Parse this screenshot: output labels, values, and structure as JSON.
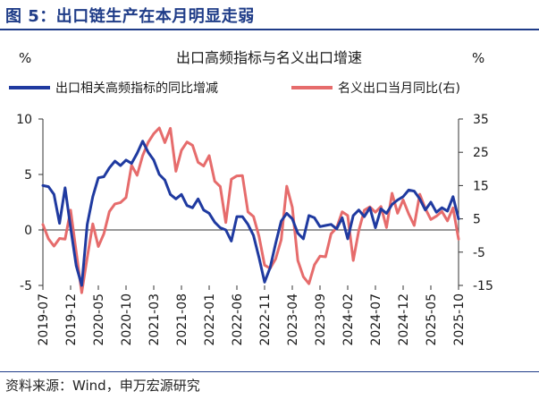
{
  "figure_title": "图 5：出口链生产在本月明显走弱",
  "source": "资料来源：Wind，申万宏源研究",
  "colors": {
    "brand": "#1f3c88",
    "series_left": "#1f3aa0",
    "series_right": "#e66c6c",
    "axis": "#333333"
  },
  "chart_data": {
    "type": "line",
    "title": "出口高频指标与名义出口增速",
    "left_unit": "%",
    "right_unit": "%",
    "legend_position": "top",
    "grid": false,
    "y_left": {
      "lim": [
        -5,
        10
      ],
      "ticks": [
        -5,
        0,
        5,
        10
      ]
    },
    "y_right": {
      "lim": [
        -15,
        35
      ],
      "ticks": [
        -15,
        -5,
        5,
        15,
        25,
        35
      ]
    },
    "x_ticks": [
      "2019-07",
      "2019-12",
      "2020-05",
      "2020-10",
      "2021-03",
      "2021-08",
      "2022-01",
      "2022-06",
      "2022-11",
      "2023-04",
      "2023-09",
      "2024-02",
      "2024-07",
      "2024-12",
      "2025-05",
      "2025-10"
    ],
    "series": [
      {
        "name": "出口相关高频指标的同比增减",
        "axis": "left",
        "color": "#1f3aa0",
        "points": [
          [
            "2019-07",
            4.0
          ],
          [
            "2019-08",
            3.9
          ],
          [
            "2019-09",
            3.2
          ],
          [
            "2019-10",
            0.6
          ],
          [
            "2019-11",
            3.8
          ],
          [
            "2019-12",
            0.2
          ],
          [
            "2020-01",
            -3.2
          ],
          [
            "2020-02",
            -5.0
          ],
          [
            "2020-03",
            0.5
          ],
          [
            "2020-04",
            3.0
          ],
          [
            "2020-05",
            4.7
          ],
          [
            "2020-06",
            4.8
          ],
          [
            "2020-07",
            5.6
          ],
          [
            "2020-08",
            6.2
          ],
          [
            "2020-09",
            5.8
          ],
          [
            "2020-10",
            6.3
          ],
          [
            "2020-11",
            6.0
          ],
          [
            "2020-12",
            6.9
          ],
          [
            "2021-01",
            8.0
          ],
          [
            "2021-02",
            7.0
          ],
          [
            "2021-03",
            6.3
          ],
          [
            "2021-04",
            5.0
          ],
          [
            "2021-05",
            4.5
          ],
          [
            "2021-06",
            3.2
          ],
          [
            "2021-07",
            2.8
          ],
          [
            "2021-08",
            3.2
          ],
          [
            "2021-09",
            2.2
          ],
          [
            "2021-10",
            2.0
          ],
          [
            "2021-11",
            2.8
          ],
          [
            "2021-12",
            1.8
          ],
          [
            "2022-01",
            1.5
          ],
          [
            "2022-02",
            0.7
          ],
          [
            "2022-03",
            0.2
          ],
          [
            "2022-04",
            0.0
          ],
          [
            "2022-05",
            -1.0
          ],
          [
            "2022-06",
            1.2
          ],
          [
            "2022-07",
            1.2
          ],
          [
            "2022-08",
            0.5
          ],
          [
            "2022-09",
            -0.5
          ],
          [
            "2022-10",
            -2.5
          ],
          [
            "2022-11",
            -4.7
          ],
          [
            "2022-12",
            -3.4
          ],
          [
            "2023-01",
            -1.2
          ],
          [
            "2023-02",
            0.8
          ],
          [
            "2023-03",
            1.5
          ],
          [
            "2023-04",
            1.0
          ],
          [
            "2023-05",
            -0.3
          ],
          [
            "2023-06",
            -0.8
          ],
          [
            "2023-07",
            1.3
          ],
          [
            "2023-08",
            1.1
          ],
          [
            "2023-09",
            0.3
          ],
          [
            "2023-10",
            0.4
          ],
          [
            "2023-11",
            0.5
          ],
          [
            "2023-12",
            0.1
          ],
          [
            "2024-01",
            1.1
          ],
          [
            "2024-02",
            -0.8
          ],
          [
            "2024-03",
            1.3
          ],
          [
            "2024-04",
            1.8
          ],
          [
            "2024-05",
            1.2
          ],
          [
            "2024-06",
            2.0
          ],
          [
            "2024-07",
            0.2
          ],
          [
            "2024-08",
            1.9
          ],
          [
            "2024-09",
            1.5
          ],
          [
            "2024-10",
            2.3
          ],
          [
            "2024-11",
            2.7
          ],
          [
            "2024-12",
            3.0
          ],
          [
            "2025-01",
            3.6
          ],
          [
            "2025-02",
            3.5
          ],
          [
            "2025-03",
            2.8
          ],
          [
            "2025-04",
            1.8
          ],
          [
            "2025-05",
            2.5
          ],
          [
            "2025-06",
            1.6
          ],
          [
            "2025-07",
            2.0
          ],
          [
            "2025-08",
            1.7
          ],
          [
            "2025-09",
            3.0
          ],
          [
            "2025-10",
            1.0
          ]
        ]
      },
      {
        "name": "名义出口当月同比(右)",
        "axis": "right",
        "color": "#e66c6c",
        "points": [
          [
            "2019-07",
            3.3
          ],
          [
            "2019-08",
            -1.0
          ],
          [
            "2019-09",
            -3.2
          ],
          [
            "2019-10",
            -0.9
          ],
          [
            "2019-11",
            -1.1
          ],
          [
            "2019-12",
            7.6
          ],
          [
            "2020-02",
            -17.2
          ],
          [
            "2020-03",
            -6.6
          ],
          [
            "2020-04",
            3.5
          ],
          [
            "2020-05",
            -3.3
          ],
          [
            "2020-06",
            0.5
          ],
          [
            "2020-07",
            7.2
          ],
          [
            "2020-08",
            9.5
          ],
          [
            "2020-09",
            9.9
          ],
          [
            "2020-10",
            11.4
          ],
          [
            "2020-11",
            21.1
          ],
          [
            "2020-12",
            18.1
          ],
          [
            "2021-01",
            24.0
          ],
          [
            "2021-02",
            28.0
          ],
          [
            "2021-03",
            30.6
          ],
          [
            "2021-04",
            32.3
          ],
          [
            "2021-05",
            27.9
          ],
          [
            "2021-06",
            32.2
          ],
          [
            "2021-07",
            19.3
          ],
          [
            "2021-08",
            25.6
          ],
          [
            "2021-09",
            28.1
          ],
          [
            "2021-10",
            27.1
          ],
          [
            "2021-11",
            22.0
          ],
          [
            "2021-12",
            20.9
          ],
          [
            "2022-01",
            24.0
          ],
          [
            "2022-02",
            16.3
          ],
          [
            "2022-03",
            14.7
          ],
          [
            "2022-04",
            3.9
          ],
          [
            "2022-05",
            16.9
          ],
          [
            "2022-06",
            17.9
          ],
          [
            "2022-07",
            18.0
          ],
          [
            "2022-08",
            7.1
          ],
          [
            "2022-09",
            5.7
          ],
          [
            "2022-10",
            -0.3
          ],
          [
            "2022-11",
            -8.9
          ],
          [
            "2022-12",
            -9.9
          ],
          [
            "2023-01",
            -7.0
          ],
          [
            "2023-02",
            -1.3
          ],
          [
            "2023-03",
            14.8
          ],
          [
            "2023-04",
            8.5
          ],
          [
            "2023-05",
            -7.5
          ],
          [
            "2023-06",
            -12.4
          ],
          [
            "2023-07",
            -14.5
          ],
          [
            "2023-08",
            -8.8
          ],
          [
            "2023-09",
            -6.2
          ],
          [
            "2023-10",
            -6.4
          ],
          [
            "2023-11",
            0.5
          ],
          [
            "2023-12",
            2.3
          ],
          [
            "2024-01",
            7.1
          ],
          [
            "2024-02",
            6.0
          ],
          [
            "2024-03",
            -7.5
          ],
          [
            "2024-04",
            1.5
          ],
          [
            "2024-05",
            7.6
          ],
          [
            "2024-06",
            8.6
          ],
          [
            "2024-07",
            7.0
          ],
          [
            "2024-08",
            8.7
          ],
          [
            "2024-09",
            2.4
          ],
          [
            "2024-10",
            12.7
          ],
          [
            "2024-11",
            6.7
          ],
          [
            "2024-12",
            10.7
          ],
          [
            "2025-01",
            6.5
          ],
          [
            "2025-02",
            3.0
          ],
          [
            "2025-03",
            12.4
          ],
          [
            "2025-04",
            8.1
          ],
          [
            "2025-05",
            4.8
          ],
          [
            "2025-06",
            5.8
          ],
          [
            "2025-07",
            7.2
          ],
          [
            "2025-08",
            4.4
          ],
          [
            "2025-09",
            8.3
          ],
          [
            "2025-10",
            -1.1
          ]
        ]
      }
    ]
  }
}
